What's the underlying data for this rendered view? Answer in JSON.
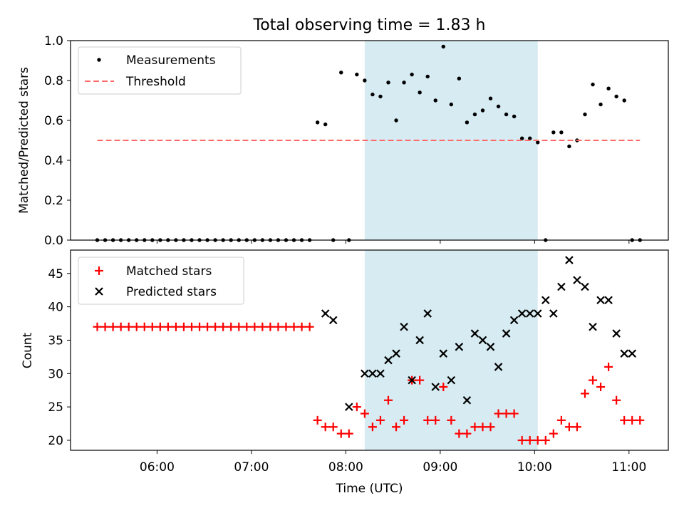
{
  "title": "Total observing time = 1.83 h",
  "xlabel": "Time (UTC)",
  "x_ticks": [
    "06:00",
    "07:00",
    "08:00",
    "09:00",
    "10:00",
    "11:00"
  ],
  "colors": {
    "shade": "#add8e6",
    "measurement": "#000000",
    "threshold": "#ff6b6b",
    "matched": "#ff0000",
    "predicted": "#000000"
  },
  "chart_data": [
    {
      "type": "scatter",
      "ylabel": "Matched/Predicted stars",
      "xlim": [
        "05:05",
        "11:25"
      ],
      "ylim": [
        0,
        1.0
      ],
      "y_ticks": [
        "0.0",
        "0.2",
        "0.4",
        "0.6",
        "0.8",
        "1.0"
      ],
      "grid": false,
      "legend_position": "upper left",
      "shaded_region": [
        "08:12",
        "10:02"
      ],
      "series": [
        {
          "name": "Measurements",
          "marker": "dot",
          "x": [
            "05:22",
            "05:27",
            "05:32",
            "05:37",
            "05:42",
            "05:47",
            "05:52",
            "05:57",
            "06:02",
            "06:07",
            "06:12",
            "06:17",
            "06:22",
            "06:27",
            "06:32",
            "06:37",
            "06:42",
            "06:47",
            "06:52",
            "06:57",
            "07:02",
            "07:07",
            "07:12",
            "07:17",
            "07:22",
            "07:27",
            "07:32",
            "07:37",
            "07:42",
            "07:47",
            "07:52",
            "07:57",
            "08:02",
            "08:07",
            "08:12",
            "08:17",
            "08:22",
            "08:27",
            "08:32",
            "08:37",
            "08:42",
            "08:47",
            "08:52",
            "08:57",
            "09:02",
            "09:07",
            "09:12",
            "09:17",
            "09:22",
            "09:27",
            "09:32",
            "09:37",
            "09:42",
            "09:47",
            "09:52",
            "09:57",
            "10:02",
            "10:07",
            "10:12",
            "10:17",
            "10:22",
            "10:27",
            "10:32",
            "10:37",
            "10:42",
            "10:47",
            "10:52",
            "10:57",
            "11:02",
            "11:07"
          ],
          "values": [
            0,
            0,
            0,
            0,
            0,
            0,
            0,
            0,
            0,
            0,
            0,
            0,
            0,
            0,
            0,
            0,
            0,
            0,
            0,
            0,
            0,
            0,
            0,
            0,
            0,
            0,
            0,
            0,
            0.59,
            0.58,
            0,
            0.84,
            0,
            0.83,
            0.8,
            0.73,
            0.72,
            0.79,
            0.6,
            0.79,
            0.83,
            0.74,
            0.82,
            0.7,
            0.97,
            0.68,
            0.81,
            0.59,
            0.63,
            0.65,
            0.71,
            0.67,
            0.63,
            0.62,
            0.51,
            0.51,
            0.49,
            0,
            0.54,
            0.54,
            0.47,
            0.5,
            0.63,
            0.78,
            0.68,
            0.76,
            0.72,
            0.7,
            0,
            0
          ]
        },
        {
          "name": "Threshold",
          "style": "dashed",
          "x": [
            "05:22",
            "11:07"
          ],
          "values": [
            0.5,
            0.5
          ]
        }
      ]
    },
    {
      "type": "scatter",
      "ylabel": "Count",
      "xlim": [
        "05:05",
        "11:25"
      ],
      "ylim": [
        18.5,
        48.5
      ],
      "y_ticks": [
        "20",
        "25",
        "30",
        "35",
        "40",
        "45"
      ],
      "grid": false,
      "legend_position": "upper left",
      "shaded_region": [
        "08:12",
        "10:02"
      ],
      "series": [
        {
          "name": "Matched stars",
          "marker": "plus",
          "x": [
            "05:22",
            "05:27",
            "05:32",
            "05:37",
            "05:42",
            "05:47",
            "05:52",
            "05:57",
            "06:02",
            "06:07",
            "06:12",
            "06:17",
            "06:22",
            "06:27",
            "06:32",
            "06:37",
            "06:42",
            "06:47",
            "06:52",
            "06:57",
            "07:02",
            "07:07",
            "07:12",
            "07:17",
            "07:22",
            "07:27",
            "07:32",
            "07:37",
            "07:42",
            "07:47",
            "07:52",
            "07:57",
            "08:02",
            "08:07",
            "08:12",
            "08:17",
            "08:22",
            "08:27",
            "08:32",
            "08:37",
            "08:42",
            "08:47",
            "08:52",
            "08:57",
            "09:02",
            "09:07",
            "09:12",
            "09:17",
            "09:22",
            "09:27",
            "09:32",
            "09:37",
            "09:42",
            "09:47",
            "09:52",
            "09:57",
            "10:02",
            "10:07",
            "10:12",
            "10:17",
            "10:22",
            "10:27",
            "10:32",
            "10:37",
            "10:42",
            "10:47",
            "10:52",
            "10:57",
            "11:02",
            "11:07"
          ],
          "values": [
            37,
            37,
            37,
            37,
            37,
            37,
            37,
            37,
            37,
            37,
            37,
            37,
            37,
            37,
            37,
            37,
            37,
            37,
            37,
            37,
            37,
            37,
            37,
            37,
            37,
            37,
            37,
            37,
            23,
            22,
            22,
            21,
            21,
            25,
            24,
            22,
            23,
            26,
            22,
            23,
            29,
            29,
            23,
            23,
            28,
            23,
            21,
            21,
            22,
            22,
            22,
            24,
            24,
            24,
            20,
            20,
            20,
            20,
            21,
            23,
            22,
            22,
            27,
            29,
            28,
            31,
            26,
            23,
            23,
            23
          ]
        },
        {
          "name": "Predicted stars",
          "marker": "x",
          "x": [
            "07:47",
            "07:52",
            "08:02",
            "08:12",
            "08:17",
            "08:22",
            "08:27",
            "08:32",
            "08:37",
            "08:42",
            "08:47",
            "08:52",
            "08:57",
            "09:02",
            "09:07",
            "09:12",
            "09:17",
            "09:22",
            "09:27",
            "09:32",
            "09:37",
            "09:42",
            "09:47",
            "09:52",
            "09:57",
            "10:02",
            "10:07",
            "10:12",
            "10:17",
            "10:22",
            "10:27",
            "10:32",
            "10:37",
            "10:42",
            "10:47",
            "10:52",
            "10:57",
            "11:02"
          ],
          "values": [
            39,
            38,
            25,
            30,
            30,
            30,
            32,
            33,
            37,
            29,
            35,
            39,
            28,
            33,
            29,
            34,
            26,
            36,
            35,
            34,
            31,
            36,
            38,
            39,
            39,
            39,
            41,
            39,
            43,
            47,
            44,
            43,
            37,
            41,
            41,
            36,
            33,
            33
          ]
        }
      ]
    }
  ]
}
